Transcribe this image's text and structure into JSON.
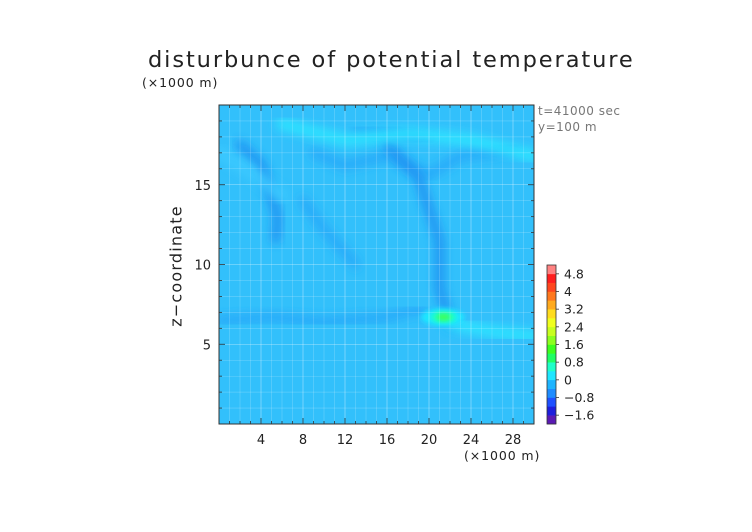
{
  "chart_data": {
    "type": "heatmap",
    "title": "disturbunce of potential temperature",
    "x_unit_label": "(×1000 m)",
    "y_unit_label": "(×1000 m)",
    "ylabel": "z−coordinate",
    "xlabel": "",
    "annotation_time": "t=41000 sec",
    "annotation_y": "y=100 m",
    "xlim": [
      0,
      30
    ],
    "ylim": [
      0,
      20
    ],
    "x_ticks": [
      4,
      8,
      12,
      16,
      20,
      24,
      28
    ],
    "y_ticks": [
      5,
      10,
      15
    ],
    "grid": true,
    "colorbar": {
      "position": "right",
      "levels": [
        -2.0,
        -1.6,
        -1.2,
        -0.8,
        -0.4,
        0,
        0.4,
        0.8,
        1.2,
        1.6,
        2.0,
        2.4,
        2.8,
        3.2,
        3.6,
        4.0,
        4.4,
        4.8,
        5.2
      ],
      "labeled_levels": [
        "4.8",
        "4",
        "3.2",
        "2.4",
        "1.6",
        "0.8",
        "0",
        "−0.8",
        "−1.6"
      ],
      "colors": [
        "#5a1ab4",
        "#1e1edc",
        "#1e50ff",
        "#1e8cff",
        "#1eb4ff",
        "#1ee6ff",
        "#1effc8",
        "#1eff64",
        "#3cff1e",
        "#8cff1e",
        "#c8ff1e",
        "#f0ff1e",
        "#ffdc1e",
        "#ffaa1e",
        "#ff781e",
        "#ff461e",
        "#ff1e1e",
        "#ff8282"
      ]
    },
    "background_value": 0.1,
    "features": [
      {
        "kind": "negative_band",
        "value": -0.3,
        "path": [
          [
            2,
            17.5
          ],
          [
            4,
            16.3
          ],
          [
            5.6,
            13
          ],
          [
            5.4,
            11.6
          ]
        ]
      },
      {
        "kind": "negative_band",
        "value": -0.25,
        "path": [
          [
            9,
            17.0
          ],
          [
            12,
            16.2
          ],
          [
            16,
            16.8
          ],
          [
            20,
            15.6
          ],
          [
            23,
            16.8
          ],
          [
            28,
            17.2
          ]
        ]
      },
      {
        "kind": "negative_band",
        "value": -0.3,
        "path": [
          [
            16,
            17.5
          ],
          [
            19,
            15.5
          ],
          [
            21,
            11.5
          ],
          [
            21,
            8.5
          ],
          [
            22,
            6.2
          ]
        ]
      },
      {
        "kind": "negative_band",
        "value": -0.25,
        "path": [
          [
            0,
            6.5
          ],
          [
            5,
            6.7
          ],
          [
            10,
            6.4
          ],
          [
            16,
            6.7
          ],
          [
            19,
            7.2
          ],
          [
            21,
            6.5
          ]
        ]
      },
      {
        "kind": "negative_band",
        "value": -0.2,
        "path": [
          [
            13,
            18.5
          ],
          [
            17,
            18.3
          ],
          [
            20,
            17.8
          ]
        ]
      },
      {
        "kind": "negative_band",
        "value": -0.25,
        "path": [
          [
            8,
            14
          ],
          [
            10,
            12.2
          ],
          [
            13,
            10
          ]
        ]
      },
      {
        "kind": "positive_band",
        "value": 0.4,
        "path": [
          [
            6,
            18.8
          ],
          [
            12,
            17.8
          ],
          [
            18,
            18.2
          ],
          [
            24,
            17.8
          ],
          [
            30,
            16.8
          ]
        ]
      },
      {
        "kind": "positive_band",
        "value": 0.3,
        "path": [
          [
            0,
            17
          ],
          [
            3,
            15.8
          ],
          [
            6,
            14.3
          ]
        ]
      },
      {
        "kind": "positive_band",
        "value": 0.35,
        "path": [
          [
            22,
            6.3
          ],
          [
            26,
            5.8
          ],
          [
            30,
            5.5
          ]
        ]
      },
      {
        "kind": "positive_spot",
        "value": 1.4,
        "x": 21.3,
        "y": 6.7
      }
    ]
  }
}
